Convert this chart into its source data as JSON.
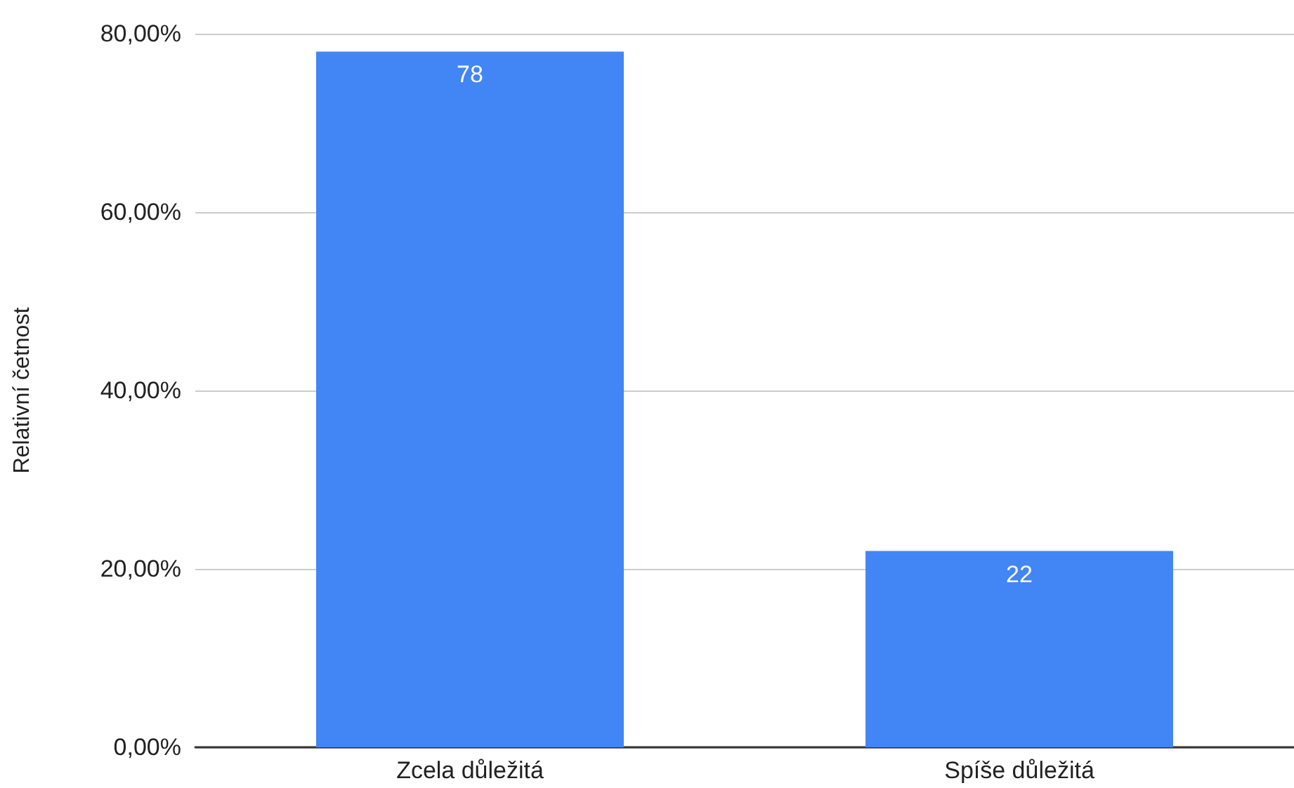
{
  "chart_data": {
    "type": "bar",
    "ylabel": "Relativní četnost",
    "categories": [
      "Zcela důležitá",
      "Spíše důležitá"
    ],
    "values": [
      78,
      22
    ],
    "color": "#4285f4",
    "data_labels": true,
    "ylim": [
      0,
      80
    ],
    "yticks": [
      {
        "value": 0,
        "label": "0,00%"
      },
      {
        "value": 20,
        "label": "20,00%"
      },
      {
        "value": 40,
        "label": "40,00%"
      },
      {
        "value": 60,
        "label": "60,00%"
      },
      {
        "value": 80,
        "label": "80,00%"
      }
    ],
    "grid": "y"
  }
}
